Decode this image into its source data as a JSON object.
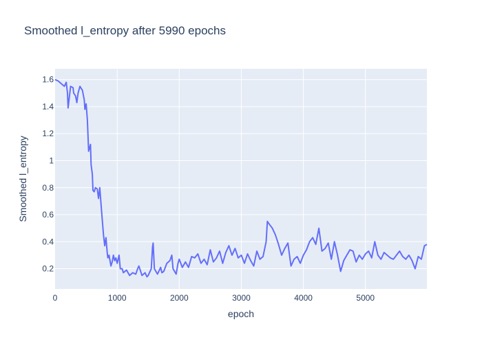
{
  "chart_data": {
    "type": "line",
    "title": "Smoothed l_entropy after 5990 epochs",
    "xlabel": "epoch",
    "ylabel": "Smoothed l_entropy",
    "xlim": [
      0,
      5990
    ],
    "ylim": [
      0.05,
      1.68
    ],
    "x_ticks": [
      0,
      1000,
      2000,
      3000,
      4000,
      5000
    ],
    "x_tick_labels": [
      "0",
      "1000",
      "2000",
      "3000",
      "4000",
      "5000"
    ],
    "y_ticks": [
      0.2,
      0.4,
      0.6,
      0.8,
      1.0,
      1.2,
      1.4,
      1.6
    ],
    "y_tick_labels": [
      "0.2",
      "0.4",
      "0.6",
      "0.8",
      "1",
      "1.2",
      "1.4",
      "1.6"
    ],
    "grid": true,
    "colors": {
      "line": "#636efa",
      "plot_bg": "#e5ecf6",
      "grid": "#ffffff",
      "text": "#2a3f5f"
    },
    "series": [
      {
        "values_x": [
          0,
          50,
          100,
          150,
          180,
          200,
          210,
          250,
          290,
          300,
          330,
          350,
          370,
          400,
          440,
          470,
          480,
          500,
          520,
          540,
          570,
          580,
          600,
          610,
          630,
          650,
          680,
          700,
          720,
          730,
          750,
          780,
          800,
          820,
          840,
          850,
          870,
          900,
          920,
          940,
          960,
          980,
          1000,
          1030,
          1050,
          1080,
          1100,
          1150,
          1200,
          1250,
          1300,
          1330,
          1350,
          1400,
          1450,
          1480,
          1500,
          1550,
          1570,
          1580,
          1600,
          1650,
          1700,
          1720,
          1750,
          1800,
          1850,
          1880,
          1900,
          1950,
          1980,
          2000,
          2050,
          2100,
          2150,
          2200,
          2250,
          2300,
          2350,
          2400,
          2450,
          2500,
          2550,
          2600,
          2650,
          2700,
          2750,
          2800,
          2850,
          2900,
          2950,
          3000,
          3050,
          3100,
          3150,
          3200,
          3250,
          3300,
          3350,
          3400,
          3420,
          3450,
          3500,
          3550,
          3600,
          3650,
          3700,
          3750,
          3800,
          3850,
          3900,
          3950,
          4000,
          4050,
          4100,
          4150,
          4200,
          4250,
          4300,
          4350,
          4400,
          4450,
          4500,
          4550,
          4600,
          4650,
          4700,
          4750,
          4800,
          4850,
          4900,
          4950,
          5000,
          5050,
          5100,
          5150,
          5200,
          5250,
          5300,
          5350,
          5400,
          5450,
          5500,
          5550,
          5600,
          5650,
          5700,
          5750,
          5800,
          5850,
          5900,
          5950,
          5990
        ],
        "values_y": [
          1.6,
          1.59,
          1.57,
          1.55,
          1.58,
          1.5,
          1.39,
          1.55,
          1.54,
          1.5,
          1.48,
          1.43,
          1.5,
          1.55,
          1.52,
          1.45,
          1.38,
          1.42,
          1.3,
          1.07,
          1.12,
          0.97,
          0.9,
          0.78,
          0.77,
          0.8,
          0.79,
          0.72,
          0.8,
          0.74,
          0.62,
          0.45,
          0.37,
          0.43,
          0.32,
          0.28,
          0.3,
          0.22,
          0.25,
          0.3,
          0.26,
          0.28,
          0.24,
          0.3,
          0.2,
          0.2,
          0.17,
          0.19,
          0.15,
          0.17,
          0.16,
          0.2,
          0.22,
          0.15,
          0.17,
          0.14,
          0.15,
          0.2,
          0.36,
          0.39,
          0.2,
          0.16,
          0.21,
          0.17,
          0.18,
          0.24,
          0.26,
          0.3,
          0.2,
          0.16,
          0.24,
          0.27,
          0.21,
          0.25,
          0.21,
          0.29,
          0.28,
          0.31,
          0.24,
          0.27,
          0.23,
          0.34,
          0.25,
          0.28,
          0.33,
          0.24,
          0.32,
          0.37,
          0.3,
          0.35,
          0.28,
          0.3,
          0.24,
          0.31,
          0.26,
          0.22,
          0.33,
          0.27,
          0.29,
          0.4,
          0.55,
          0.53,
          0.5,
          0.45,
          0.38,
          0.3,
          0.35,
          0.39,
          0.22,
          0.27,
          0.29,
          0.24,
          0.3,
          0.34,
          0.4,
          0.43,
          0.38,
          0.5,
          0.33,
          0.35,
          0.39,
          0.27,
          0.4,
          0.3,
          0.18,
          0.26,
          0.3,
          0.34,
          0.33,
          0.25,
          0.3,
          0.27,
          0.31,
          0.33,
          0.28,
          0.4,
          0.3,
          0.27,
          0.32,
          0.3,
          0.28,
          0.27,
          0.3,
          0.33,
          0.29,
          0.27,
          0.3,
          0.26,
          0.2,
          0.29,
          0.27,
          0.37,
          0.38
        ]
      }
    ]
  }
}
